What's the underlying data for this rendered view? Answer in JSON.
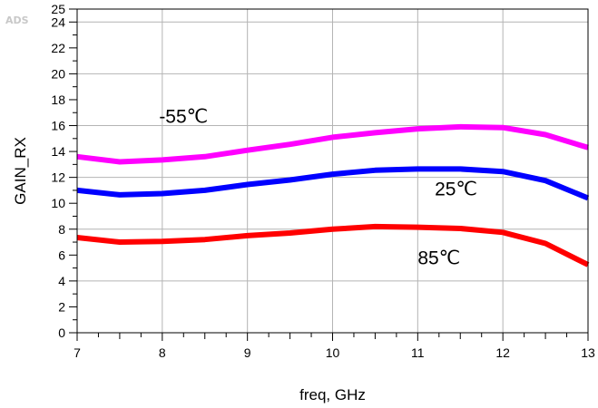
{
  "logo": "ADS",
  "chart_data": {
    "type": "line",
    "xlabel": "freq, GHz",
    "ylabel": "GAIN_RX",
    "xlim": [
      7,
      13
    ],
    "ylim": [
      0,
      25
    ],
    "x_ticks": [
      7,
      8,
      9,
      10,
      11,
      12,
      13
    ],
    "y_ticks": [
      0,
      2,
      4,
      6,
      8,
      10,
      12,
      14,
      16,
      18,
      20,
      22,
      24,
      25
    ],
    "grid": true,
    "x": [
      7,
      7.5,
      8,
      8.5,
      9,
      9.5,
      10,
      10.5,
      11,
      11.5,
      12,
      12.5,
      13
    ],
    "series": [
      {
        "values": [
          13.6,
          13.2,
          13.35,
          13.6,
          14.1,
          14.55,
          15.1,
          15.45,
          15.75,
          15.9,
          15.85,
          15.3,
          14.3
        ],
        "color": "#ff00ff"
      },
      {
        "values": [
          11.0,
          10.65,
          10.75,
          11.0,
          11.45,
          11.8,
          12.25,
          12.55,
          12.65,
          12.65,
          12.45,
          11.75,
          10.4
        ],
        "color": "#0000ff"
      },
      {
        "values": [
          7.35,
          7.0,
          7.05,
          7.2,
          7.5,
          7.7,
          8.0,
          8.2,
          8.15,
          8.05,
          7.75,
          6.9,
          5.25
        ],
        "color": "#ff0000"
      }
    ],
    "annotations": [
      {
        "text": "-55℃",
        "x": 8.25,
        "y": 16.2
      },
      {
        "text": "25℃",
        "x": 11.45,
        "y": 10.6
      },
      {
        "text": "85℃",
        "x": 11.25,
        "y": 5.3
      }
    ]
  }
}
